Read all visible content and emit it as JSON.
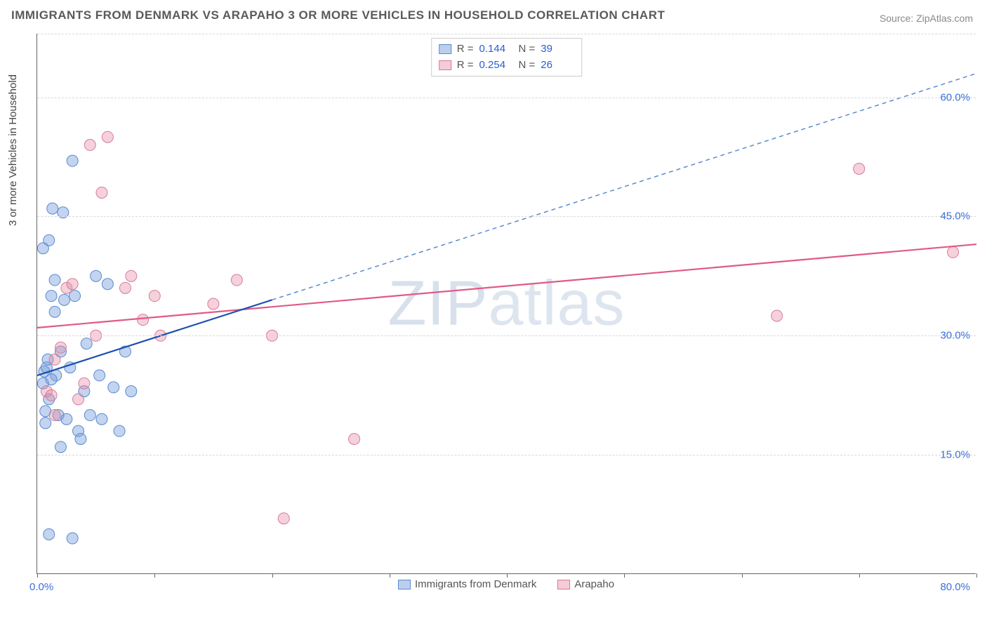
{
  "title": "IMMIGRANTS FROM DENMARK VS ARAPAHO 3 OR MORE VEHICLES IN HOUSEHOLD CORRELATION CHART",
  "source": "Source: ZipAtlas.com",
  "watermark": "ZIPatlas",
  "y_axis_title": "3 or more Vehicles in Household",
  "chart": {
    "type": "scatter",
    "background_color": "#ffffff",
    "grid_color": "#d8d8d8",
    "axis_color": "#666666",
    "text_color": "#5a5a5a",
    "value_color": "#2b5dd0",
    "tick_label_color": "#3b6fd9",
    "xlim": [
      0,
      80
    ],
    "ylim": [
      0,
      68
    ],
    "x_ticks": [
      0,
      10,
      20,
      30,
      40,
      50,
      60,
      70,
      80
    ],
    "x_tick_labels": {
      "0": "0.0%",
      "80": "80.0%"
    },
    "y_grid": [
      15,
      30,
      45,
      60,
      68
    ],
    "y_tick_labels": {
      "15": "15.0%",
      "30": "30.0%",
      "45": "45.0%",
      "60": "60.0%"
    },
    "marker_radius": 8,
    "series": [
      {
        "name": "Immigrants from Denmark",
        "color_fill": "rgba(120,160,220,0.45)",
        "color_stroke": "#5a8ad0",
        "R": 0.144,
        "N": 39,
        "points": [
          [
            0.5,
            24
          ],
          [
            0.6,
            25.5
          ],
          [
            0.7,
            19
          ],
          [
            0.7,
            20.5
          ],
          [
            0.8,
            26
          ],
          [
            0.9,
            27
          ],
          [
            1.0,
            22
          ],
          [
            1.0,
            42
          ],
          [
            1.2,
            35
          ],
          [
            1.3,
            46
          ],
          [
            1.5,
            37
          ],
          [
            1.5,
            33
          ],
          [
            1.6,
            25
          ],
          [
            1.8,
            20
          ],
          [
            2.0,
            28
          ],
          [
            2.0,
            16
          ],
          [
            2.2,
            45.5
          ],
          [
            2.3,
            34.5
          ],
          [
            2.5,
            19.5
          ],
          [
            2.8,
            26
          ],
          [
            3.0,
            52
          ],
          [
            3.2,
            35
          ],
          [
            3.5,
            18
          ],
          [
            3.7,
            17
          ],
          [
            4.0,
            23
          ],
          [
            4.2,
            29
          ],
          [
            4.5,
            20
          ],
          [
            5.0,
            37.5
          ],
          [
            5.3,
            25
          ],
          [
            5.5,
            19.5
          ],
          [
            6.0,
            36.5
          ],
          [
            6.5,
            23.5
          ],
          [
            7.0,
            18
          ],
          [
            7.5,
            28
          ],
          [
            8.0,
            23
          ],
          [
            1.0,
            5
          ],
          [
            3.0,
            4.5
          ],
          [
            0.5,
            41
          ],
          [
            1.2,
            24.5
          ]
        ],
        "trend_solid": {
          "x1": 0,
          "y1": 25,
          "x2": 20,
          "y2": 34.5
        },
        "trend_dash": {
          "x1": 20,
          "y1": 34.5,
          "x2": 80,
          "y2": 63
        }
      },
      {
        "name": "Arapaho",
        "color_fill": "rgba(230,140,165,0.4)",
        "color_stroke": "#d87b98",
        "R": 0.254,
        "N": 26,
        "points": [
          [
            0.8,
            23
          ],
          [
            1.2,
            22.5
          ],
          [
            1.5,
            27
          ],
          [
            2.0,
            28.5
          ],
          [
            2.5,
            36
          ],
          [
            3.0,
            36.5
          ],
          [
            3.5,
            22
          ],
          [
            4.0,
            24
          ],
          [
            4.5,
            54
          ],
          [
            5.0,
            30
          ],
          [
            5.5,
            48
          ],
          [
            6.0,
            55
          ],
          [
            7.5,
            36
          ],
          [
            8.0,
            37.5
          ],
          [
            9.0,
            32
          ],
          [
            10.0,
            35
          ],
          [
            10.5,
            30
          ],
          [
            15.0,
            34
          ],
          [
            17.0,
            37
          ],
          [
            20.0,
            30
          ],
          [
            21.0,
            7
          ],
          [
            27.0,
            17
          ],
          [
            63.0,
            32.5
          ],
          [
            70.0,
            51
          ],
          [
            78.0,
            40.5
          ],
          [
            1.5,
            20
          ]
        ],
        "trend": {
          "x1": 0,
          "y1": 31,
          "x2": 80,
          "y2": 41.5
        }
      }
    ],
    "legend_top": [
      {
        "swatch": "blue",
        "R": "0.144",
        "N": "39"
      },
      {
        "swatch": "pink",
        "R": "0.254",
        "N": "26"
      }
    ],
    "legend_bottom": [
      {
        "swatch": "blue",
        "label": "Immigrants from Denmark"
      },
      {
        "swatch": "pink",
        "label": "Arapaho"
      }
    ]
  }
}
